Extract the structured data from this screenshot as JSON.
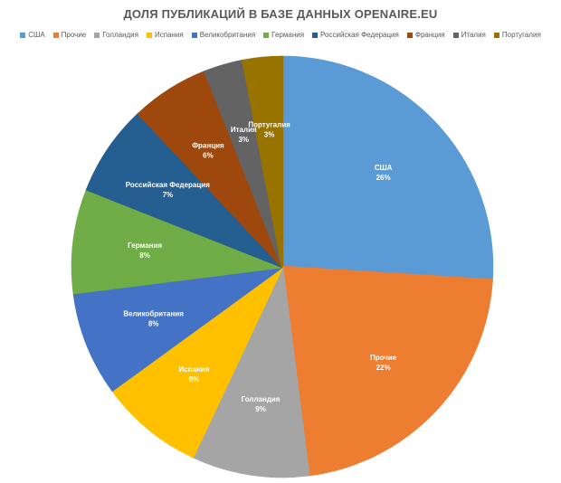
{
  "chart_data": {
    "type": "pie",
    "title": "ДОЛЯ ПУБЛИКАЦИЙ В БАЗЕ ДАННЫХ OPENAIRE.EU",
    "legend_position": "top",
    "slices": [
      {
        "label": "США",
        "value": 26,
        "value_label": "26%",
        "color": "#5B9BD5"
      },
      {
        "label": "Прочие",
        "value": 22,
        "value_label": "22%",
        "color": "#ED7D31"
      },
      {
        "label": "Голландия",
        "value": 9,
        "value_label": "9%",
        "color": "#A5A5A5"
      },
      {
        "label": "Испания",
        "value": 8,
        "value_label": "8%",
        "color": "#FFC000"
      },
      {
        "label": "Великобритания",
        "value": 8,
        "value_label": "8%",
        "color": "#4472C4"
      },
      {
        "label": "Германия",
        "value": 8,
        "value_label": "8%",
        "color": "#70AD47"
      },
      {
        "label": "Российская Федерация",
        "value": 7,
        "value_label": "7%",
        "color": "#255E91"
      },
      {
        "label": "Франция",
        "value": 6,
        "value_label": "6%",
        "color": "#9E480E"
      },
      {
        "label": "Италия",
        "value": 3,
        "value_label": "3%",
        "color": "#636363"
      },
      {
        "label": "Португалия",
        "value": 3,
        "value_label": "3%",
        "color": "#997300"
      }
    ]
  }
}
